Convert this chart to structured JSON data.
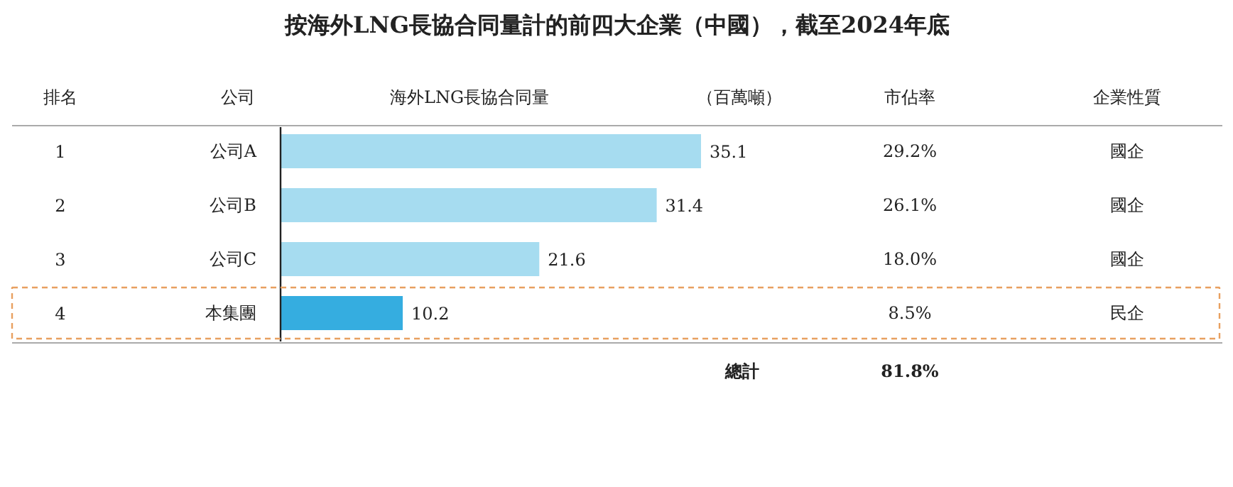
{
  "chart_data": {
    "type": "bar",
    "orientation": "horizontal",
    "title": "按海外LNG長協合同量計的前四大企業（中國），截至2024年底",
    "ylabel": "公司",
    "xlabel": "海外LNG長協合同量",
    "categories": [
      "公司A",
      "公司B",
      "公司C",
      "本集團"
    ],
    "values": [
      35.1,
      31.4,
      21.6,
      10.2
    ],
    "colors": [
      "#a6dcf0",
      "#a6dcf0",
      "#a6dcf0",
      "#35ade0"
    ],
    "data_labels": true,
    "annotations": [
      "排名",
      "（百萬噸）",
      "市佔率",
      "企業性質",
      "總計",
      "81.8%",
      "1",
      "29.2%",
      "國企",
      "2",
      "26.1%",
      "國企",
      "3",
      "18.0%",
      "國企",
      "4",
      "8.5%",
      "民企"
    ]
  }
}
